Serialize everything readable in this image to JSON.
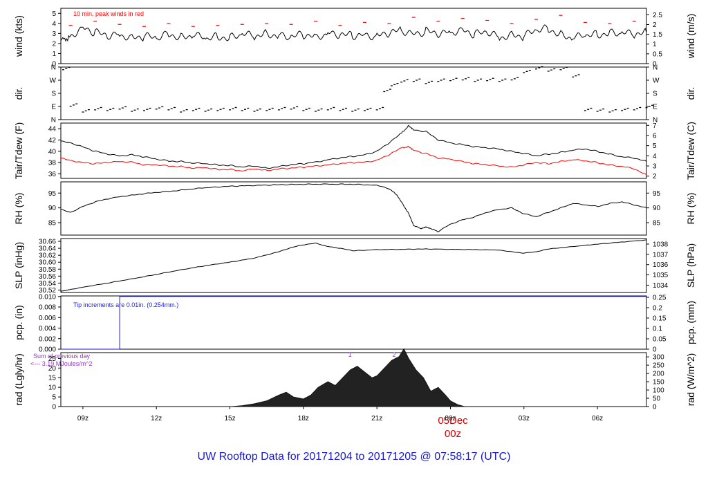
{
  "title": "UW Rooftop Data for 20171204  to  20171205 @ 07:58:17  (UTC)",
  "colors": {
    "line": "#000000",
    "dew": "#ff0000",
    "note_red": "#ff0000",
    "note_blue": "#1a1aff",
    "note_purple": "#9933cc",
    "title": "#1a1acc",
    "date": "#cc0000"
  },
  "x_axis": {
    "labels": [
      "09z",
      "12z",
      "15z",
      "18z",
      "21z",
      "00z",
      "03z",
      "06z"
    ],
    "hours": [
      9,
      12,
      15,
      18,
      21,
      24,
      27,
      30
    ],
    "range_hours": [
      8.1,
      32.0
    ],
    "date_label": "05Dec",
    "date_sub": "00z"
  },
  "panels": {
    "wind": {
      "ylabel_left": "wind (kts)",
      "ylabel_right": "wind (m/s)",
      "ylim": [
        0,
        5.5
      ],
      "left_ticks": [
        "0",
        "1",
        "2",
        "3",
        "4",
        "5"
      ],
      "left_values": [
        0,
        1,
        2,
        3,
        4,
        5
      ],
      "right_ticks": [
        "0",
        "0.5",
        "1",
        "1.5",
        "2",
        "2.5"
      ],
      "right_values": [
        0,
        0.5,
        1,
        1.5,
        2,
        2.5
      ],
      "note": "10 min. peak winds in red"
    },
    "dir": {
      "ylabel_left": "dir.",
      "ylabel_right": "dir.",
      "ticks": [
        "N",
        "W",
        "S",
        "E",
        "N"
      ],
      "values": [
        360,
        270,
        180,
        90,
        0
      ],
      "ylim": [
        0,
        360
      ]
    },
    "temp": {
      "ylabel_left": "Tair/Tdew (F)",
      "ylabel_right": "Tair/Tdew (C)",
      "ylim": [
        35.2,
        45.0
      ],
      "left_ticks": [
        "36",
        "38",
        "40",
        "42",
        "44"
      ],
      "left_values": [
        36,
        38,
        40,
        42,
        44
      ],
      "right_ticks": [
        "2",
        "3",
        "4",
        "5",
        "6",
        "7"
      ],
      "right_values": [
        2,
        3,
        4,
        5,
        6,
        7
      ]
    },
    "rh": {
      "ylabel_left": "RH (%)",
      "ylabel_right": "RH (%)",
      "ylim": [
        80.8,
        98.8
      ],
      "left_ticks": [
        "85",
        "90",
        "95"
      ],
      "left_values": [
        85,
        90,
        95
      ],
      "right_ticks": [
        "85",
        "90",
        "95"
      ],
      "right_values": [
        85,
        90,
        95
      ]
    },
    "slp": {
      "ylabel_left": "SLP (inHg)",
      "ylabel_right": "SLP (hPa)",
      "ylim": [
        30.513,
        30.668
      ],
      "left_ticks": [
        "30.52",
        "30.54",
        "30.56",
        "30.58",
        "30.60",
        "30.62",
        "30.64",
        "30.66"
      ],
      "left_values": [
        30.52,
        30.54,
        30.56,
        30.58,
        30.6,
        30.62,
        30.64,
        30.66
      ],
      "right_ticks": [
        "1034",
        "1035",
        "1036",
        "1037",
        "1038"
      ],
      "right_values": [
        1034,
        1035,
        1036,
        1037,
        1038
      ]
    },
    "pcp": {
      "ylabel_left": "pcp. (in)",
      "ylabel_right": "pcp. (mm)",
      "ylim": [
        0,
        0.0101
      ],
      "left_ticks": [
        "0.000",
        "0.002",
        "0.004",
        "0.006",
        "0.008",
        "0.010"
      ],
      "left_values": [
        0,
        0.002,
        0.004,
        0.006,
        0.008,
        0.01
      ],
      "right_ticks": [
        "0",
        "0.05",
        "0.1",
        "0.15",
        "0.2",
        "0.25"
      ],
      "right_values": [
        0,
        0.05,
        0.1,
        0.15,
        0.2,
        0.25
      ],
      "note": "Tip increments are 0.01in. (0.254mm.)"
    },
    "rad": {
      "ylabel_left": "rad (Lgly/hr)",
      "ylabel_right": "rad (W/m^2)",
      "ylim": [
        0,
        28
      ],
      "left_ticks": [
        "0",
        "5",
        "10",
        "15",
        "20",
        "25"
      ],
      "left_values": [
        0,
        5,
        10,
        15,
        20,
        25
      ],
      "right_ticks": [
        "0",
        "50",
        "100",
        "150",
        "200",
        "250",
        "300"
      ],
      "right_values": [
        0,
        50,
        100,
        150,
        200,
        250,
        300
      ],
      "note_line1": "Sum of previous day",
      "note_line2": "<--- 3.19 MJoules/m^2",
      "marker_labels": [
        "1",
        "2"
      ],
      "marker_hours": [
        19.9,
        21.7
      ]
    }
  },
  "chart_data": [
    {
      "type": "line",
      "panel": "wind",
      "series": [
        {
          "name": "wind",
          "x": [
            8.1,
            8.5,
            9,
            9.5,
            10,
            10.5,
            11,
            11.5,
            12,
            12.5,
            13,
            13.5,
            14,
            14.5,
            15,
            15.5,
            16,
            16.5,
            17,
            17.5,
            18,
            18.5,
            19,
            19.5,
            20,
            20.5,
            21,
            21.5,
            22,
            22.5,
            23,
            23.5,
            24,
            24.5,
            25,
            25.5,
            26,
            26.5,
            27,
            27.5,
            28,
            28.5,
            29,
            29.5,
            30,
            30.5,
            31,
            31.5,
            32
          ],
          "y": [
            2.2,
            2.8,
            3.6,
            3.1,
            2.7,
            2.9,
            2.6,
            2.7,
            2.5,
            3.0,
            2.6,
            2.8,
            2.5,
            2.7,
            2.6,
            2.9,
            2.7,
            3.0,
            2.8,
            2.6,
            2.9,
            2.7,
            3.0,
            2.8,
            2.8,
            2.9,
            2.7,
            3.0,
            3.3,
            3.0,
            3.2,
            2.9,
            3.1,
            3.4,
            2.9,
            3.1,
            2.6,
            2.9,
            2.7,
            3.3,
            3.5,
            2.9,
            2.5,
            2.8,
            2.9,
            3.1,
            3.0,
            2.9,
            3.1
          ]
        },
        {
          "name": "peak",
          "x": [
            8.5,
            9.5,
            10.5,
            11.5,
            12.5,
            13.5,
            14.5,
            15.5,
            16.5,
            17.5,
            18.5,
            19.5,
            20.5,
            21.5,
            22.5,
            23.5,
            24.5,
            25.5,
            26.5,
            27.5,
            28.5,
            29.5,
            30.5,
            31.5
          ],
          "y": [
            3.8,
            4.2,
            3.9,
            3.7,
            4.0,
            3.7,
            3.8,
            3.9,
            4.0,
            3.9,
            4.2,
            3.8,
            4.1,
            4.0,
            4.6,
            4.2,
            4.5,
            4.3,
            4.0,
            4.4,
            4.8,
            4.1,
            4.0,
            4.2
          ]
        }
      ]
    },
    {
      "type": "scatter",
      "panel": "dir",
      "series": [
        {
          "name": "dir",
          "x": [
            8.2,
            8.5,
            9,
            9.5,
            10,
            10.5,
            11,
            11.5,
            12,
            12.5,
            13,
            13.5,
            14,
            14.5,
            15,
            15.5,
            16,
            16.5,
            17,
            17.5,
            18,
            18.5,
            19,
            19.5,
            20,
            20.5,
            21,
            21.3,
            21.6,
            22,
            22.5,
            23,
            23.5,
            24,
            24.5,
            25,
            25.5,
            26,
            26.5,
            27,
            27.5,
            28,
            28.5,
            29,
            29.5,
            30,
            30.5,
            31,
            31.5,
            32
          ],
          "y": [
            350,
            100,
            60,
            75,
            70,
            80,
            65,
            70,
            80,
            75,
            60,
            70,
            65,
            70,
            75,
            70,
            65,
            70,
            75,
            80,
            70,
            65,
            75,
            70,
            65,
            70,
            75,
            200,
            240,
            265,
            270,
            255,
            270,
            275,
            280,
            270,
            275,
            270,
            280,
            330,
            355,
            340,
            350,
            300,
            70,
            65,
            60,
            70,
            75,
            90
          ]
        }
      ]
    },
    {
      "type": "line",
      "panel": "temp",
      "series": [
        {
          "name": "Tair",
          "x": [
            8.1,
            8.5,
            9,
            9.5,
            10,
            10.5,
            11,
            11.5,
            12,
            12.5,
            13,
            13.5,
            14,
            14.5,
            15,
            15.5,
            16,
            16.5,
            17,
            17.5,
            18,
            18.5,
            19,
            19.5,
            20,
            20.5,
            21,
            21.5,
            22,
            22.3,
            22.5,
            23,
            23.5,
            24,
            24.5,
            25,
            25.5,
            26,
            26.5,
            27,
            27.5,
            28,
            28.5,
            29,
            29.5,
            30,
            30.5,
            31,
            31.5,
            32
          ],
          "y": [
            41.8,
            41.5,
            40.8,
            40.0,
            39.5,
            39.2,
            39.4,
            39.0,
            38.6,
            38.3,
            38.2,
            37.9,
            37.8,
            37.6,
            37.5,
            37.2,
            37.4,
            37.0,
            37.3,
            37.6,
            37.8,
            38.1,
            38.5,
            38.8,
            39.1,
            39.4,
            40.0,
            41.5,
            43.2,
            44.5,
            43.8,
            43.5,
            42.0,
            41.5,
            41.2,
            40.8,
            40.6,
            40.4,
            40.0,
            39.6,
            39.2,
            39.5,
            39.8,
            40.2,
            40.4,
            40.0,
            39.5,
            39.0,
            38.8,
            38.2
          ]
        },
        {
          "name": "Tdew",
          "x": [
            8.1,
            8.5,
            9,
            9.5,
            10,
            10.5,
            11,
            11.5,
            12,
            12.5,
            13,
            13.5,
            14,
            14.5,
            15,
            15.5,
            16,
            16.5,
            17,
            17.5,
            18,
            18.5,
            19,
            19.5,
            20,
            20.5,
            21,
            21.5,
            22,
            22.3,
            22.5,
            23,
            23.5,
            24,
            24.5,
            25,
            25.5,
            26,
            26.5,
            27,
            27.5,
            28,
            28.5,
            29,
            29.5,
            30,
            30.5,
            31,
            31.5,
            32
          ],
          "y": [
            38.8,
            38.4,
            38.0,
            37.8,
            38.0,
            38.2,
            38.1,
            37.6,
            37.6,
            37.4,
            37.3,
            37.0,
            37.1,
            36.8,
            36.8,
            36.5,
            36.9,
            36.6,
            36.9,
            37.0,
            37.2,
            37.4,
            37.6,
            37.8,
            38.0,
            38.1,
            38.4,
            39.4,
            40.6,
            40.8,
            40.2,
            39.6,
            38.8,
            38.6,
            38.2,
            37.8,
            37.6,
            37.4,
            37.2,
            37.6,
            38.0,
            37.8,
            38.2,
            38.5,
            38.3,
            38.0,
            37.6,
            37.3,
            36.9,
            35.8
          ]
        }
      ]
    },
    {
      "type": "line",
      "panel": "rh",
      "series": [
        {
          "name": "RH",
          "x": [
            8.1,
            8.5,
            9,
            9.5,
            10,
            10.5,
            11,
            11.5,
            12,
            12.5,
            13,
            13.5,
            14,
            15,
            16,
            17,
            18,
            19,
            20,
            21,
            21.5,
            21.8,
            22,
            22.3,
            22.5,
            22.8,
            23,
            23.2,
            23.5,
            24,
            24.5,
            25,
            25.5,
            26,
            26.5,
            27,
            27.5,
            28,
            28.5,
            29,
            29.5,
            30,
            30.5,
            31,
            31.5,
            32
          ],
          "y": [
            89.5,
            88.5,
            90.5,
            92.0,
            93.0,
            93.8,
            94.3,
            94.8,
            95.2,
            95.6,
            96.0,
            96.4,
            96.8,
            97.3,
            97.6,
            97.8,
            98.0,
            98.0,
            98.0,
            97.6,
            96.5,
            94.5,
            92.0,
            88.0,
            84.0,
            83.0,
            83.5,
            83.0,
            82.0,
            84.5,
            86.0,
            87.0,
            88.5,
            89.5,
            90.0,
            88.0,
            87.0,
            88.5,
            90.0,
            91.5,
            91.0,
            90.5,
            91.5,
            92.0,
            91.0,
            90.0
          ]
        }
      ]
    },
    {
      "type": "line",
      "panel": "slp",
      "series": [
        {
          "name": "SLP",
          "x": [
            8.1,
            8.5,
            9,
            10,
            11,
            12,
            13,
            14,
            15,
            16,
            17,
            17.5,
            18,
            18.5,
            19,
            19.5,
            20,
            21,
            22,
            23,
            24,
            25,
            26,
            26.5,
            27,
            27.5,
            28,
            29,
            30,
            31,
            32
          ],
          "y": [
            30.516,
            30.522,
            30.528,
            30.54,
            30.552,
            30.565,
            30.578,
            30.59,
            30.6,
            30.612,
            30.63,
            30.642,
            30.65,
            30.655,
            30.645,
            30.64,
            30.633,
            30.636,
            30.637,
            30.638,
            30.637,
            30.636,
            30.635,
            30.63,
            30.626,
            30.63,
            30.638,
            30.645,
            30.652,
            30.658,
            30.664
          ]
        }
      ]
    },
    {
      "type": "line",
      "panel": "pcp",
      "series": [
        {
          "name": "pcp",
          "x": [
            8.1,
            10.5,
            10.5,
            32.0
          ],
          "y": [
            0.0,
            0.0,
            0.01,
            0.01
          ]
        }
      ]
    },
    {
      "type": "area",
      "panel": "rad",
      "series": [
        {
          "name": "rad",
          "x": [
            8.1,
            15.0,
            15.5,
            16.0,
            16.5,
            17.0,
            17.3,
            17.6,
            18.0,
            18.3,
            18.6,
            19.0,
            19.3,
            19.6,
            19.9,
            20.2,
            20.5,
            20.8,
            21.0,
            21.3,
            21.6,
            21.9,
            22.1,
            22.3,
            22.6,
            22.9,
            23.2,
            23.5,
            23.8,
            24.0,
            24.3,
            24.6,
            32.0
          ],
          "y": [
            0,
            0,
            0.5,
            1.5,
            3,
            6,
            7.5,
            5,
            4,
            6,
            10,
            13,
            11,
            15,
            19,
            21,
            18,
            15,
            16,
            20,
            24,
            26,
            30,
            25,
            19,
            15,
            8,
            10,
            6,
            3,
            1,
            0,
            0
          ]
        }
      ]
    }
  ]
}
